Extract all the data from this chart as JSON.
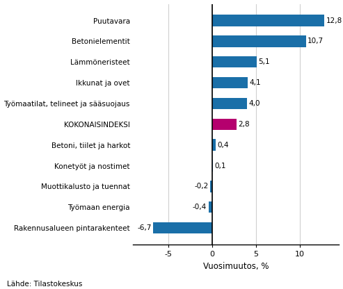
{
  "categories": [
    "Rakennusalueen pintarakenteet",
    "Työmaan energia",
    "Muottikalusto ja tuennat",
    "Konetyöt ja nostimet",
    "Betoni, tiilet ja harkot",
    "KOKONAISINDEKSI",
    "Työmaatilat, telineet ja sääsuojaus",
    "Ikkunat ja ovet",
    "Lämmöneristeet",
    "Betonielementit",
    "Puutavara"
  ],
  "values": [
    -6.7,
    -0.4,
    -0.2,
    0.1,
    0.4,
    2.8,
    4.0,
    4.1,
    5.1,
    10.7,
    12.8
  ],
  "xlabel": "Vuosimuutos, %",
  "xlim": [
    -9,
    14.5
  ],
  "xticks": [
    -5,
    0,
    5,
    10
  ],
  "source": "Lähde: Tilastokeskus",
  "bar_color_default": "#1a6fa8",
  "bar_color_highlight": "#b5006e",
  "value_labels": [
    "-6,7",
    "-0,4",
    "-0,2",
    "0,1",
    "0,4",
    "2,8",
    "4,0",
    "4,1",
    "5,1",
    "10,7",
    "12,8"
  ]
}
